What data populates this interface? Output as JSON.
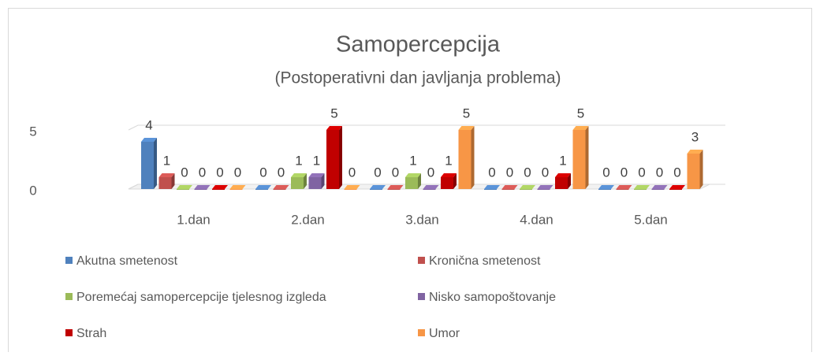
{
  "chart_data": {
    "type": "bar3d",
    "title": "Samopercepcija",
    "subtitle": "(Postoperativni dan javljanja problema)",
    "categories": [
      "1.dan",
      "2.dan",
      "3.dan",
      "4.dan",
      "5.dan"
    ],
    "series": [
      {
        "name": "Akutna smetenost",
        "color": "#4f81bd",
        "values": [
          4,
          0,
          0,
          0,
          0
        ]
      },
      {
        "name": "Kronična smetenost",
        "color": "#c0504d",
        "values": [
          1,
          0,
          0,
          0,
          0
        ]
      },
      {
        "name": "Poremećaj samopercepcije tjelesnog izgleda",
        "color": "#9bbb59",
        "values": [
          0,
          1,
          1,
          0,
          0
        ]
      },
      {
        "name": "Nisko samopoštovanje",
        "color": "#8064a2",
        "values": [
          0,
          1,
          0,
          0,
          0
        ]
      },
      {
        "name": "Strah",
        "color": "#c00000",
        "values": [
          0,
          5,
          1,
          1,
          0
        ]
      },
      {
        "name": "Umor",
        "color": "#f79646",
        "values": [
          0,
          0,
          5,
          5,
          3
        ]
      }
    ],
    "ylim": [
      0,
      5
    ],
    "yticks": [
      0,
      5
    ],
    "grid": true,
    "legend": "bottom"
  }
}
